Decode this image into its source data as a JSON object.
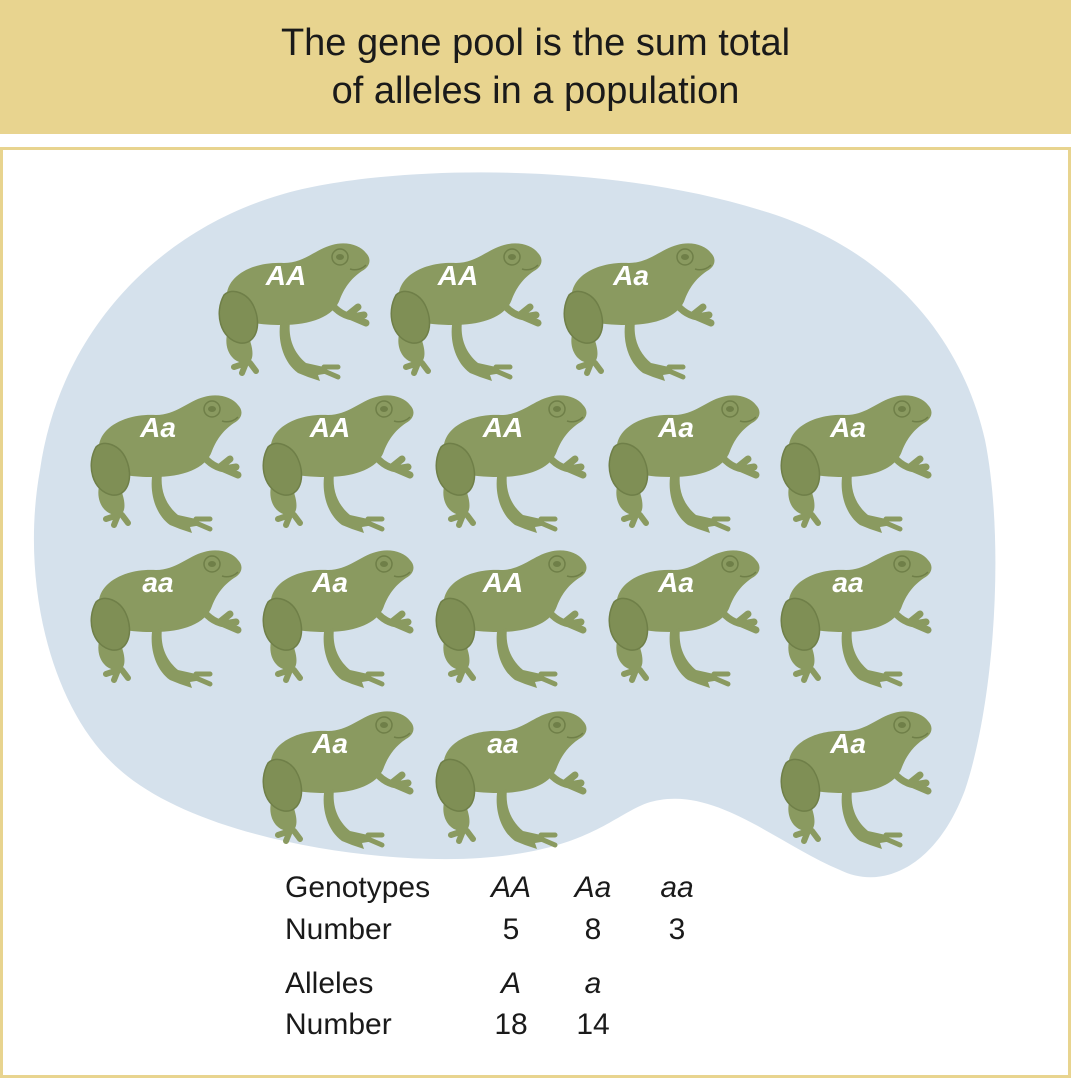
{
  "header": {
    "title_line1": "The gene pool is the sum total",
    "title_line2": "of alleles in a population"
  },
  "colors": {
    "header_bg": "#e8d48f",
    "pond": "#d5e1ec",
    "frog": "#8a9a60",
    "frog_dark": "#6f7f48"
  },
  "frogs": [
    {
      "genotype": "AA"
    },
    {
      "genotype": "AA"
    },
    {
      "genotype": "Aa"
    },
    {
      "genotype": "Aa"
    },
    {
      "genotype": "AA"
    },
    {
      "genotype": "AA"
    },
    {
      "genotype": "Aa"
    },
    {
      "genotype": "Aa"
    },
    {
      "genotype": "aa"
    },
    {
      "genotype": "Aa"
    },
    {
      "genotype": "AA"
    },
    {
      "genotype": "Aa"
    },
    {
      "genotype": "aa"
    },
    {
      "genotype": "Aa"
    },
    {
      "genotype": "aa"
    },
    {
      "genotype": "Aa"
    }
  ],
  "table": {
    "genotypes_label": "Genotypes",
    "genotypes": [
      "AA",
      "Aa",
      "aa"
    ],
    "genotype_number_label": "Number",
    "genotype_counts": [
      "5",
      "8",
      "3"
    ],
    "alleles_label": "Alleles",
    "alleles": [
      "A",
      "a"
    ],
    "allele_number_label": "Number",
    "allele_counts": [
      "18",
      "14"
    ]
  }
}
